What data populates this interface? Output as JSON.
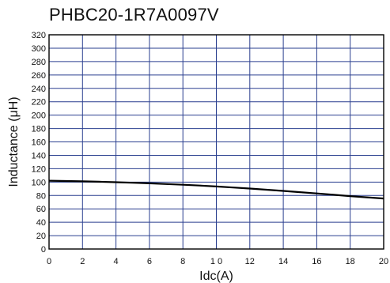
{
  "chart_data": {
    "type": "line",
    "title": "PHBC20-1R7A0097V",
    "xlabel": "Idc(A)",
    "ylabel": "Inductance (μH)",
    "xlim": [
      0,
      20
    ],
    "ylim": [
      0,
      320
    ],
    "x_ticks": [
      "0",
      "2",
      "4",
      "6",
      "8",
      "1 0",
      "12",
      "14",
      "16",
      "18",
      "20"
    ],
    "x_tick_values": [
      0,
      2,
      4,
      6,
      8,
      10,
      12,
      14,
      16,
      18,
      20
    ],
    "y_ticks": [
      0,
      20,
      40,
      60,
      80,
      100,
      120,
      140,
      160,
      180,
      200,
      220,
      240,
      260,
      280,
      300,
      320
    ],
    "grid": true,
    "colors": {
      "grid": "#2a3f8f",
      "line": "#000000",
      "frame": "#000000"
    },
    "series": [
      {
        "x": [
          0,
          1,
          2,
          3,
          4,
          5,
          6,
          7,
          8,
          9,
          10,
          11,
          12,
          13,
          14,
          15,
          16,
          17,
          18,
          19,
          20
        ],
        "values": [
          102,
          101.6,
          101.1,
          100.5,
          99.8,
          99.0,
          98.1,
          97.1,
          96.0,
          94.8,
          93.4,
          91.9,
          90.3,
          88.6,
          86.8,
          84.9,
          83.0,
          81.0,
          79.0,
          77.2,
          75.5
        ]
      }
    ]
  }
}
